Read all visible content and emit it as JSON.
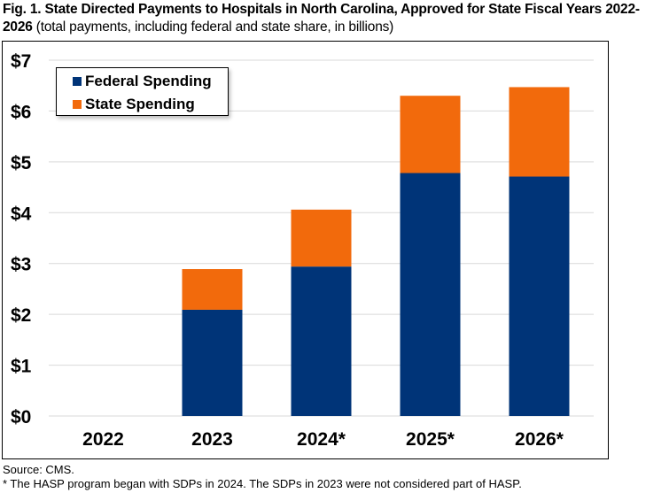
{
  "title": {
    "bold": "Fig. 1. State Directed Payments to Hospitals in North Carolina, Approved for State Fiscal Years 2022-2026",
    "subtitle": "(total payments, including federal and state share, in billions)"
  },
  "colors": {
    "federal": "#003478",
    "state": "#F26A0C",
    "grid": "#D9D9D9"
  },
  "chart_data": {
    "type": "bar",
    "stacked": true,
    "title": "Fig. 1. State Directed Payments to Hospitals in North Carolina, Approved for State Fiscal Years 2022-2026",
    "subtitle": "(total payments, including federal and state share, in billions)",
    "xlabel": "",
    "ylabel": "",
    "categories": [
      "2022",
      "2023",
      "2024*",
      "2025*",
      "2026*"
    ],
    "series": [
      {
        "name": "Federal Spending",
        "values": [
          0,
          2.09,
          2.94,
          4.78,
          4.71
        ]
      },
      {
        "name": "State Spending",
        "values": [
          0,
          0.8,
          1.12,
          1.52,
          1.76
        ]
      }
    ],
    "ylim": [
      0,
      7
    ],
    "yticks": [
      "$0",
      "$1",
      "$2",
      "$3",
      "$4",
      "$5",
      "$6",
      "$7"
    ],
    "grid": true,
    "legend_position": "top-left"
  },
  "legend": {
    "items": [
      "Federal Spending",
      "State Spending"
    ]
  },
  "footnotes": {
    "source": "Source: CMS.",
    "note": "* The HASP program began with SDPs in 2024. The SDPs in 2023 were not considered part of HASP."
  }
}
